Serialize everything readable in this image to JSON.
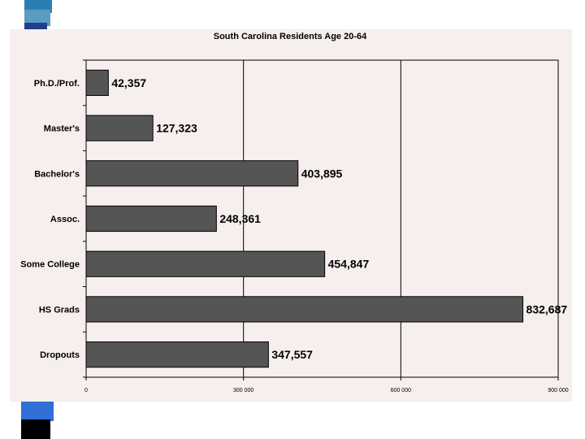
{
  "chart_data": {
    "type": "bar",
    "orientation": "horizontal",
    "title": "South Carolina Residents Age 20-64",
    "xlabel": "",
    "ylabel": "",
    "categories": [
      "Ph.D./Prof.",
      "Master's",
      "Bachelor's",
      "Assoc.",
      "Some College",
      "HS Grads",
      "Dropouts"
    ],
    "values": [
      42357,
      127323,
      403895,
      248361,
      454847,
      832687,
      347557
    ],
    "value_labels": [
      "42,357",
      "127,323",
      "403,895",
      "248,361",
      "454,847",
      "832,687",
      "347,557"
    ],
    "xlim": [
      0,
      900000
    ],
    "xticks": [
      0,
      300000,
      600000,
      900000
    ],
    "xtick_labels": [
      "0",
      "300 000",
      "600 000",
      "900 000"
    ],
    "grid": "vertical",
    "legend": "none",
    "colors": {
      "bar": "#555555",
      "panel": "#f6efee"
    }
  }
}
